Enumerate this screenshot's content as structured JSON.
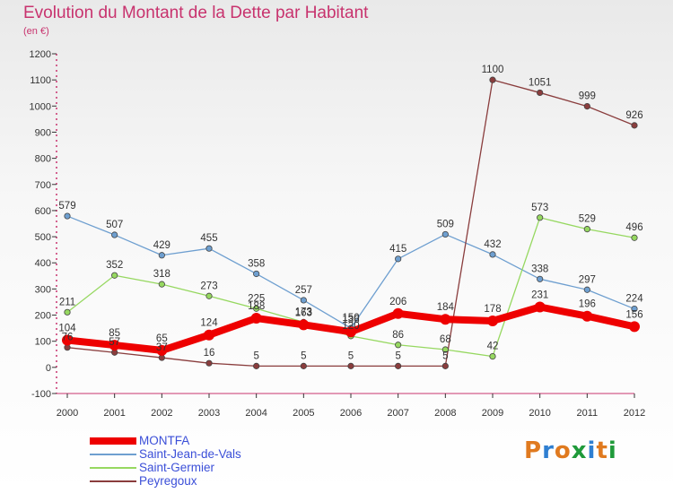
{
  "title": "Evolution du Montant de la Dette par Habitant",
  "subtitle": "(en €)",
  "logo_text": "Proxiti",
  "colors": {
    "logo": [
      "#e07a1f",
      "#2f7fd1",
      "#e07a1f",
      "#1f9a3a",
      "#2f7fd1",
      "#e07a1f",
      "#1f9a3a"
    ]
  },
  "chart_data": {
    "type": "line",
    "title": "Evolution du Montant de la Dette par Habitant",
    "subtitle": "(en €)",
    "x": [
      "2000",
      "2001",
      "2002",
      "2003",
      "2004",
      "2005",
      "2006",
      "2007",
      "2008",
      "2009",
      "2010",
      "2011",
      "2012"
    ],
    "ylim": [
      -100,
      1200
    ],
    "yticks": [
      "-100",
      "0",
      "100",
      "200",
      "300",
      "400",
      "500",
      "600",
      "700",
      "800",
      "900",
      "1000",
      "1100",
      "1200"
    ],
    "grid": false,
    "legend_position": "bottom-left",
    "series": [
      {
        "name": "MONTFA",
        "color": "#ee0000",
        "values": [
          104,
          85,
          65,
          124,
          188,
          163,
          136,
          206,
          184,
          178,
          231,
          196,
          156
        ],
        "labels": [
          "104",
          "85",
          "65",
          "124",
          "188",
          "163",
          "136",
          "206",
          "184",
          "178",
          "231",
          "196",
          "156"
        ]
      },
      {
        "name": "Saint-Jean-de-Vals",
        "color": "#6e9fd0",
        "values": [
          579,
          507,
          429,
          455,
          358,
          257,
          150,
          415,
          509,
          432,
          338,
          297,
          224
        ],
        "labels": [
          "579",
          "507",
          "429",
          "455",
          "358",
          "257",
          "150",
          "415",
          "509",
          "432",
          "338",
          "297",
          "224"
        ]
      },
      {
        "name": "Saint-Germier",
        "color": "#96d860",
        "values": [
          211,
          352,
          318,
          273,
          225,
          173,
          120,
          86,
          68,
          42,
          573,
          529,
          496
        ],
        "labels": [
          "211",
          "352",
          "318",
          "273",
          "225",
          "173",
          "120",
          "86",
          "68",
          "42",
          "573",
          "529",
          "496"
        ]
      },
      {
        "name": "Peyregoux",
        "color": "#8a3d3d",
        "values": [
          76,
          57,
          37,
          16,
          5,
          5,
          5,
          5,
          5,
          1100,
          1051,
          999,
          926
        ],
        "labels": [
          "76",
          "57",
          "37",
          "16",
          "5",
          "5",
          "5",
          "5",
          "5",
          "1100",
          "1051",
          "999",
          "926"
        ]
      }
    ]
  }
}
